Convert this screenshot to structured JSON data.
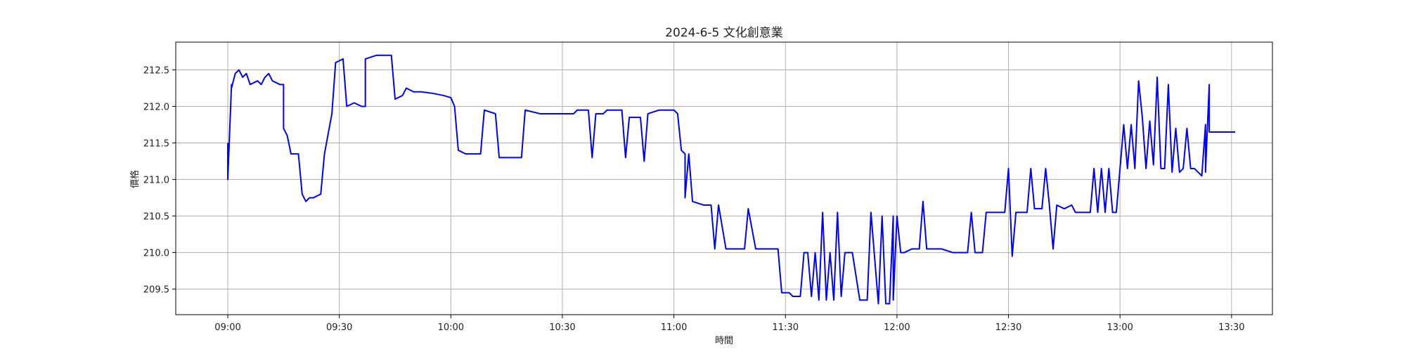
{
  "chart_data": {
    "type": "line",
    "title": "2024-6-5 文化創意業",
    "xlabel": "時間",
    "ylabel": "價格",
    "xlim": [
      "08:46",
      "13:41"
    ],
    "ylim": [
      209.15,
      212.88
    ],
    "x_ticks": [
      "09:00",
      "09:30",
      "10:00",
      "10:30",
      "11:00",
      "11:30",
      "12:00",
      "12:30",
      "13:00",
      "13:30"
    ],
    "y_ticks": [
      "209.5",
      "210.0",
      "210.5",
      "211.0",
      "211.5",
      "212.0",
      "212.5"
    ],
    "grid": true,
    "line_color": "#0000ff",
    "series": [
      {
        "name": "",
        "points": [
          [
            "09:00",
            211.5
          ],
          [
            "09:00",
            211.0
          ],
          [
            "09:01",
            212.3
          ],
          [
            "09:01",
            212.25
          ],
          [
            "09:02",
            212.45
          ],
          [
            "09:03",
            212.5
          ],
          [
            "09:04",
            212.4
          ],
          [
            "09:05",
            212.45
          ],
          [
            "09:06",
            212.3
          ],
          [
            "09:08",
            212.35
          ],
          [
            "09:09",
            212.3
          ],
          [
            "09:10",
            212.4
          ],
          [
            "09:11",
            212.45
          ],
          [
            "09:12",
            212.35
          ],
          [
            "09:14",
            212.3
          ],
          [
            "09:15",
            212.3
          ],
          [
            "09:15",
            211.7
          ],
          [
            "09:16",
            211.6
          ],
          [
            "09:17",
            211.35
          ],
          [
            "09:19",
            211.35
          ],
          [
            "09:20",
            210.8
          ],
          [
            "09:21",
            210.7
          ],
          [
            "09:22",
            210.75
          ],
          [
            "09:23",
            210.75
          ],
          [
            "09:25",
            210.8
          ],
          [
            "09:26",
            211.35
          ],
          [
            "09:28",
            211.9
          ],
          [
            "09:29",
            212.6
          ],
          [
            "09:31",
            212.65
          ],
          [
            "09:32",
            212.0
          ],
          [
            "09:34",
            212.05
          ],
          [
            "09:36",
            212.0
          ],
          [
            "09:37",
            212.0
          ],
          [
            "09:37",
            212.65
          ],
          [
            "09:40",
            212.7
          ],
          [
            "09:44",
            212.7
          ],
          [
            "09:45",
            212.1
          ],
          [
            "09:47",
            212.15
          ],
          [
            "09:48",
            212.25
          ],
          [
            "09:50",
            212.2
          ],
          [
            "09:52",
            212.2
          ],
          [
            "09:55",
            212.18
          ],
          [
            "09:58",
            212.15
          ],
          [
            "10:00",
            212.12
          ],
          [
            "10:01",
            212.0
          ],
          [
            "10:02",
            211.4
          ],
          [
            "10:04",
            211.35
          ],
          [
            "10:06",
            211.35
          ],
          [
            "10:08",
            211.35
          ],
          [
            "10:09",
            211.95
          ],
          [
            "10:12",
            211.9
          ],
          [
            "10:13",
            211.3
          ],
          [
            "10:17",
            211.3
          ],
          [
            "10:19",
            211.3
          ],
          [
            "10:20",
            211.95
          ],
          [
            "10:24",
            211.9
          ],
          [
            "10:28",
            211.9
          ],
          [
            "10:30",
            211.9
          ],
          [
            "10:33",
            211.9
          ],
          [
            "10:34",
            211.95
          ],
          [
            "10:37",
            211.95
          ],
          [
            "10:38",
            211.3
          ],
          [
            "10:39",
            211.9
          ],
          [
            "10:41",
            211.9
          ],
          [
            "10:42",
            211.95
          ],
          [
            "10:44",
            211.95
          ],
          [
            "10:46",
            211.95
          ],
          [
            "10:47",
            211.3
          ],
          [
            "10:48",
            211.85
          ],
          [
            "10:51",
            211.85
          ],
          [
            "10:52",
            211.25
          ],
          [
            "10:53",
            211.9
          ],
          [
            "10:56",
            211.95
          ],
          [
            "10:58",
            211.95
          ],
          [
            "11:00",
            211.95
          ],
          [
            "11:01",
            211.9
          ],
          [
            "11:02",
            211.4
          ],
          [
            "11:03",
            211.35
          ],
          [
            "11:03",
            210.75
          ],
          [
            "11:04",
            211.35
          ],
          [
            "11:05",
            210.7
          ],
          [
            "11:08",
            210.65
          ],
          [
            "11:10",
            210.65
          ],
          [
            "11:11",
            210.05
          ],
          [
            "11:12",
            210.65
          ],
          [
            "11:14",
            210.05
          ],
          [
            "11:17",
            210.05
          ],
          [
            "11:19",
            210.05
          ],
          [
            "11:20",
            210.6
          ],
          [
            "11:22",
            210.05
          ],
          [
            "11:25",
            210.05
          ],
          [
            "11:27",
            210.05
          ],
          [
            "11:28",
            210.05
          ],
          [
            "11:29",
            209.45
          ],
          [
            "11:31",
            209.45
          ],
          [
            "11:32",
            209.4
          ],
          [
            "11:34",
            209.4
          ],
          [
            "11:35",
            210.0
          ],
          [
            "11:36",
            210.0
          ],
          [
            "11:37",
            209.4
          ],
          [
            "11:38",
            210.0
          ],
          [
            "11:39",
            209.35
          ],
          [
            "11:40",
            210.55
          ],
          [
            "11:41",
            209.35
          ],
          [
            "11:42",
            210.0
          ],
          [
            "11:43",
            209.35
          ],
          [
            "11:44",
            210.55
          ],
          [
            "11:45",
            209.4
          ],
          [
            "11:46",
            210.0
          ],
          [
            "11:48",
            210.0
          ],
          [
            "11:50",
            209.35
          ],
          [
            "11:52",
            209.35
          ],
          [
            "11:53",
            210.55
          ],
          [
            "11:55",
            209.3
          ],
          [
            "11:56",
            210.5
          ],
          [
            "11:57",
            209.3
          ],
          [
            "11:58",
            209.3
          ],
          [
            "11:59",
            210.5
          ],
          [
            "11:59",
            209.35
          ],
          [
            "12:00",
            210.5
          ],
          [
            "12:01",
            210.0
          ],
          [
            "12:02",
            210.0
          ],
          [
            "12:04",
            210.05
          ],
          [
            "12:06",
            210.05
          ],
          [
            "12:07",
            210.7
          ],
          [
            "12:08",
            210.05
          ],
          [
            "12:10",
            210.05
          ],
          [
            "12:12",
            210.05
          ],
          [
            "12:15",
            210.0
          ],
          [
            "12:17",
            210.0
          ],
          [
            "12:19",
            210.0
          ],
          [
            "12:20",
            210.55
          ],
          [
            "12:21",
            210.0
          ],
          [
            "12:23",
            210.0
          ],
          [
            "12:24",
            210.55
          ],
          [
            "12:26",
            210.55
          ],
          [
            "12:29",
            210.55
          ],
          [
            "12:30",
            211.15
          ],
          [
            "12:31",
            209.95
          ],
          [
            "12:32",
            210.55
          ],
          [
            "12:35",
            210.55
          ],
          [
            "12:36",
            211.15
          ],
          [
            "12:37",
            210.6
          ],
          [
            "12:39",
            210.6
          ],
          [
            "12:40",
            211.15
          ],
          [
            "12:41",
            210.65
          ],
          [
            "12:42",
            210.05
          ],
          [
            "12:43",
            210.65
          ],
          [
            "12:45",
            210.6
          ],
          [
            "12:47",
            210.65
          ],
          [
            "12:48",
            210.55
          ],
          [
            "12:50",
            210.55
          ],
          [
            "12:52",
            210.55
          ],
          [
            "12:53",
            211.15
          ],
          [
            "12:54",
            210.55
          ],
          [
            "12:55",
            211.15
          ],
          [
            "12:56",
            210.55
          ],
          [
            "12:57",
            211.15
          ],
          [
            "12:58",
            210.55
          ],
          [
            "12:59",
            210.55
          ],
          [
            "13:00",
            211.15
          ],
          [
            "13:01",
            211.75
          ],
          [
            "13:02",
            211.15
          ],
          [
            "13:03",
            211.75
          ],
          [
            "13:04",
            211.15
          ],
          [
            "13:05",
            212.35
          ],
          [
            "13:06",
            211.85
          ],
          [
            "13:07",
            211.15
          ],
          [
            "13:08",
            211.8
          ],
          [
            "13:09",
            211.2
          ],
          [
            "13:10",
            212.4
          ],
          [
            "13:11",
            211.15
          ],
          [
            "13:12",
            211.15
          ],
          [
            "13:13",
            212.3
          ],
          [
            "13:14",
            211.1
          ],
          [
            "13:15",
            211.7
          ],
          [
            "13:16",
            211.1
          ],
          [
            "13:17",
            211.15
          ],
          [
            "13:18",
            211.7
          ],
          [
            "13:19",
            211.15
          ],
          [
            "13:20",
            211.15
          ],
          [
            "13:21",
            211.1
          ],
          [
            "13:22",
            211.05
          ],
          [
            "13:23",
            211.75
          ],
          [
            "13:23",
            211.1
          ],
          [
            "13:24",
            212.3
          ],
          [
            "13:24",
            211.65
          ],
          [
            "13:26",
            211.65
          ],
          [
            "13:28",
            211.65
          ],
          [
            "13:30",
            211.65
          ],
          [
            "13:31",
            211.65
          ]
        ]
      }
    ]
  }
}
